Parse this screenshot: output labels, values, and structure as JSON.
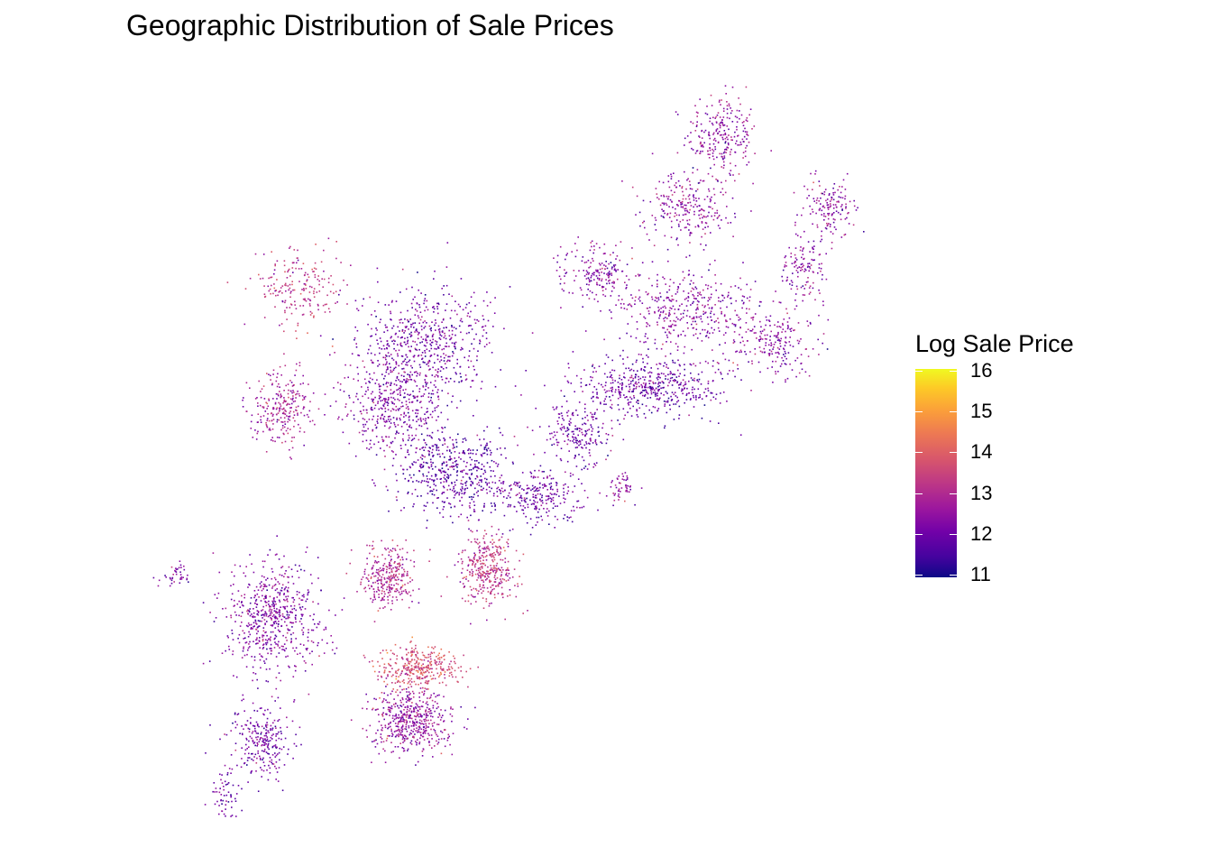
{
  "chart_data": {
    "type": "scatter",
    "title": "Geographic Distribution of Sale Prices",
    "xlabel": "",
    "ylabel": "",
    "xlim": [
      -75.28,
      -74.96
    ],
    "ylim": [
      39.87,
      40.14
    ],
    "grid": false,
    "axes_visible": false,
    "color_variable": "Log Sale Price",
    "colorbar": {
      "title": "Log Sale Price",
      "ticks": [
        11,
        12,
        13,
        14,
        15,
        16
      ],
      "tick_labels": [
        "11",
        "12",
        "13",
        "14",
        "15",
        "16"
      ],
      "range": [
        10.93,
        16.05
      ],
      "palette": [
        "#0d0887",
        "#46039f",
        "#7201a8",
        "#9c179e",
        "#bd3786",
        "#d8576b",
        "#ed7953",
        "#fb9f3a",
        "#fdca26",
        "#f0f921"
      ],
      "placement": "right"
    },
    "point_clusters": [
      {
        "lon": -75.027,
        "lat": 40.12,
        "sd_lon": 0.008,
        "sd_lat": 0.0075,
        "n": 250,
        "mean_value": 12.5
      },
      {
        "lon": -75.043,
        "lat": 40.094,
        "sd_lon": 0.01,
        "sd_lat": 0.0065,
        "n": 250,
        "mean_value": 12.5
      },
      {
        "lon": -74.978,
        "lat": 40.094,
        "sd_lon": 0.0065,
        "sd_lat": 0.0055,
        "n": 150,
        "mean_value": 12.4
      },
      {
        "lon": -74.99,
        "lat": 40.071,
        "sd_lon": 0.006,
        "sd_lat": 0.0065,
        "n": 120,
        "mean_value": 12.5
      },
      {
        "lon": -75.083,
        "lat": 40.071,
        "sd_lon": 0.008,
        "sd_lat": 0.0055,
        "n": 180,
        "mean_value": 12.4
      },
      {
        "lon": -75.043,
        "lat": 40.058,
        "sd_lon": 0.017,
        "sd_lat": 0.0065,
        "n": 400,
        "mean_value": 12.4
      },
      {
        "lon": -75.003,
        "lat": 40.045,
        "sd_lon": 0.01,
        "sd_lat": 0.006,
        "n": 200,
        "mean_value": 12.4
      },
      {
        "lon": -75.059,
        "lat": 40.029,
        "sd_lon": 0.017,
        "sd_lat": 0.0055,
        "n": 500,
        "mean_value": 12.0
      },
      {
        "lon": -75.092,
        "lat": 40.013,
        "sd_lon": 0.008,
        "sd_lat": 0.005,
        "n": 200,
        "mean_value": 12.0
      },
      {
        "lon": -75.108,
        "lat": 39.99,
        "sd_lon": 0.01,
        "sd_lat": 0.0045,
        "n": 250,
        "mean_value": 12.0
      },
      {
        "lon": -75.161,
        "lat": 40.045,
        "sd_lon": 0.015,
        "sd_lat": 0.011,
        "n": 600,
        "mean_value": 12.1
      },
      {
        "lon": -75.217,
        "lat": 40.065,
        "sd_lon": 0.01,
        "sd_lat": 0.0065,
        "n": 200,
        "mean_value": 13.2
      },
      {
        "lon": -75.225,
        "lat": 40.022,
        "sd_lon": 0.007,
        "sd_lat": 0.0065,
        "n": 250,
        "mean_value": 12.8
      },
      {
        "lon": -75.175,
        "lat": 40.022,
        "sd_lon": 0.011,
        "sd_lat": 0.009,
        "n": 400,
        "mean_value": 12.3
      },
      {
        "lon": -75.148,
        "lat": 39.999,
        "sd_lon": 0.013,
        "sd_lat": 0.008,
        "n": 500,
        "mean_value": 11.8
      },
      {
        "lon": -75.177,
        "lat": 39.961,
        "sd_lon": 0.006,
        "sd_lat": 0.005,
        "n": 300,
        "mean_value": 13.0
      },
      {
        "lon": -75.132,
        "lat": 39.964,
        "sd_lon": 0.0065,
        "sd_lat": 0.0065,
        "n": 350,
        "mean_value": 13.2
      },
      {
        "lon": -75.164,
        "lat": 39.928,
        "sd_lon": 0.009,
        "sd_lat": 0.004,
        "n": 350,
        "mean_value": 13.6
      },
      {
        "lon": -75.166,
        "lat": 39.909,
        "sd_lon": 0.009,
        "sd_lat": 0.0055,
        "n": 500,
        "mean_value": 12.5
      },
      {
        "lon": -75.229,
        "lat": 39.947,
        "sd_lon": 0.011,
        "sd_lat": 0.0095,
        "n": 600,
        "mean_value": 12.3
      },
      {
        "lon": -75.233,
        "lat": 39.902,
        "sd_lon": 0.0065,
        "sd_lat": 0.0065,
        "n": 250,
        "mean_value": 12.1
      },
      {
        "lon": -75.25,
        "lat": 39.883,
        "sd_lon": 0.003,
        "sd_lat": 0.0055,
        "n": 60,
        "mean_value": 12.1
      },
      {
        "lon": -75.272,
        "lat": 39.961,
        "sd_lon": 0.003,
        "sd_lat": 0.0025,
        "n": 40,
        "mean_value": 12.3
      },
      {
        "lon": -75.071,
        "lat": 39.993,
        "sd_lon": 0.003,
        "sd_lat": 0.0025,
        "n": 50,
        "mean_value": 12.6
      }
    ]
  }
}
